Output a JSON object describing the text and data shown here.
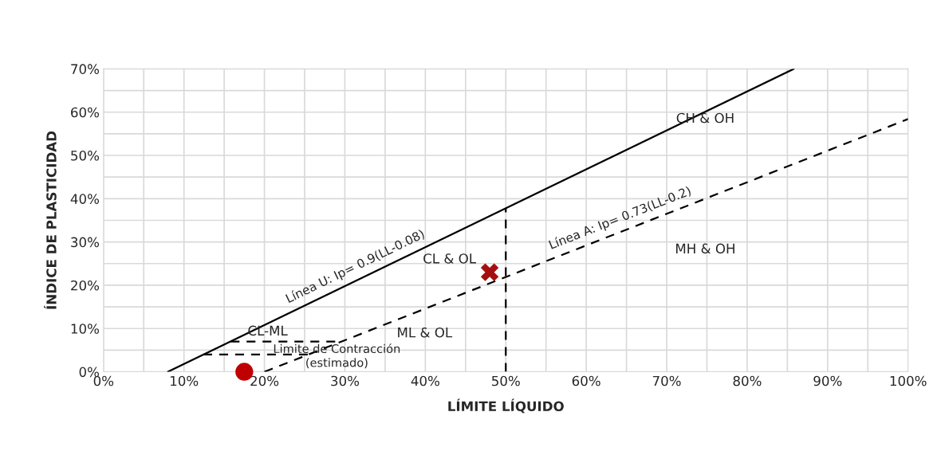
{
  "chart_data": {
    "type": "line",
    "xlabel": "LÍMITE LÍQUIDO",
    "ylabel": "ÍNDICE DE PLASTICIDAD",
    "xlim": [
      0,
      100
    ],
    "ylim": [
      0,
      70
    ],
    "xticks": [
      {
        "value": 0,
        "label": "0%"
      },
      {
        "value": 5,
        "label": null
      },
      {
        "value": 10,
        "label": "10%"
      },
      {
        "value": 15,
        "label": null
      },
      {
        "value": 20,
        "label": "20%"
      },
      {
        "value": 25,
        "label": null
      },
      {
        "value": 30,
        "label": "30%"
      },
      {
        "value": 35,
        "label": null
      },
      {
        "value": 40,
        "label": "40%"
      },
      {
        "value": 45,
        "label": null
      },
      {
        "value": 50,
        "label": "50%"
      },
      {
        "value": 55,
        "label": null
      },
      {
        "value": 60,
        "label": "60%"
      },
      {
        "value": 65,
        "label": null
      },
      {
        "value": 70,
        "label": "70%"
      },
      {
        "value": 75,
        "label": null
      },
      {
        "value": 80,
        "label": "80%"
      },
      {
        "value": 85,
        "label": null
      },
      {
        "value": 90,
        "label": "90%"
      },
      {
        "value": 95,
        "label": null
      },
      {
        "value": 100,
        "label": "100%"
      }
    ],
    "yticks": [
      {
        "value": 0,
        "label": "0%"
      },
      {
        "value": 5,
        "label": null
      },
      {
        "value": 10,
        "label": "10%"
      },
      {
        "value": 15,
        "label": null
      },
      {
        "value": 20,
        "label": "20%"
      },
      {
        "value": 25,
        "label": null
      },
      {
        "value": 30,
        "label": "30%"
      },
      {
        "value": 35,
        "label": null
      },
      {
        "value": 40,
        "label": "40%"
      },
      {
        "value": 45,
        "label": null
      },
      {
        "value": 50,
        "label": "50%"
      },
      {
        "value": 55,
        "label": null
      },
      {
        "value": 60,
        "label": "60%"
      },
      {
        "value": 65,
        "label": null
      },
      {
        "value": 70,
        "label": "70%"
      }
    ],
    "grid": true,
    "series": [
      {
        "line_style": "solid",
        "color": "#000000",
        "x": [
          8,
          85.8
        ],
        "values": [
          0,
          70
        ]
      },
      {
        "line_style": "dashed",
        "color": "#000000",
        "x": [
          20,
          100
        ],
        "values": [
          0,
          58.4
        ]
      },
      {
        "line_style": "dashed",
        "color": "#000000",
        "x": [
          50,
          50
        ],
        "values": [
          0,
          37.8
        ]
      },
      {
        "line_style": "dashed",
        "color": "#000000",
        "x": [
          15.8,
          29.6
        ],
        "values": [
          7,
          7
        ]
      },
      {
        "line_style": "dashed",
        "color": "#000000",
        "x": [
          12.4,
          25.5
        ],
        "values": [
          4,
          4
        ]
      },
      {
        "type": "scatter",
        "marker": "circle",
        "color": "#c00000",
        "x": [
          17.5
        ],
        "values": [
          0
        ]
      },
      {
        "type": "scatter",
        "marker": "cross",
        "color": "#a50f0f",
        "x": [
          48
        ],
        "values": [
          23
        ]
      }
    ],
    "annotations": [
      "CH & OH",
      "CL & OL",
      "MH & OH",
      "ML & OL",
      "CL-ML",
      "Limite de Contracción\n(estimado)",
      {
        "text": "Línea U: Ip= 0.9(LL-0.08)",
        "x": 32,
        "y": 21.6
      },
      {
        "text": "Línea A: Ip= 0.73(LL-0.2)",
        "x": 64.8,
        "y": 32.7
      }
    ]
  }
}
